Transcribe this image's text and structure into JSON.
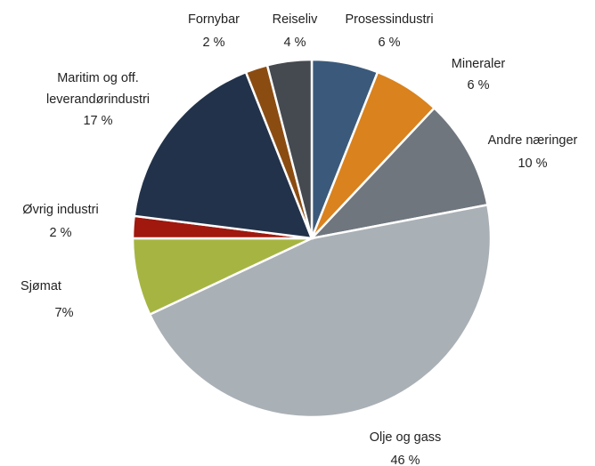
{
  "chart_data": {
    "type": "pie",
    "categories": [
      "Prosessindustri",
      "Mineraler",
      "Andre næringer",
      "Olje og gass",
      "Sjømat",
      "Øvrig industri",
      "Maritim og off. leverandørindustri",
      "Fornybar",
      "Reiseliv"
    ],
    "values": [
      6,
      6,
      10,
      46,
      7,
      2,
      17,
      2,
      4
    ],
    "value_labels": [
      "6 %",
      "6 %",
      "10 %",
      "46 %",
      "7%",
      "2 %",
      "17 %",
      "2 %",
      "4 %"
    ],
    "colors": [
      "#3b5a7b",
      "#d9821e",
      "#6f767d",
      "#a9b0b6",
      "#a6b542",
      "#a0180e",
      "#22324a",
      "#8b4c12",
      "#454a50"
    ]
  }
}
